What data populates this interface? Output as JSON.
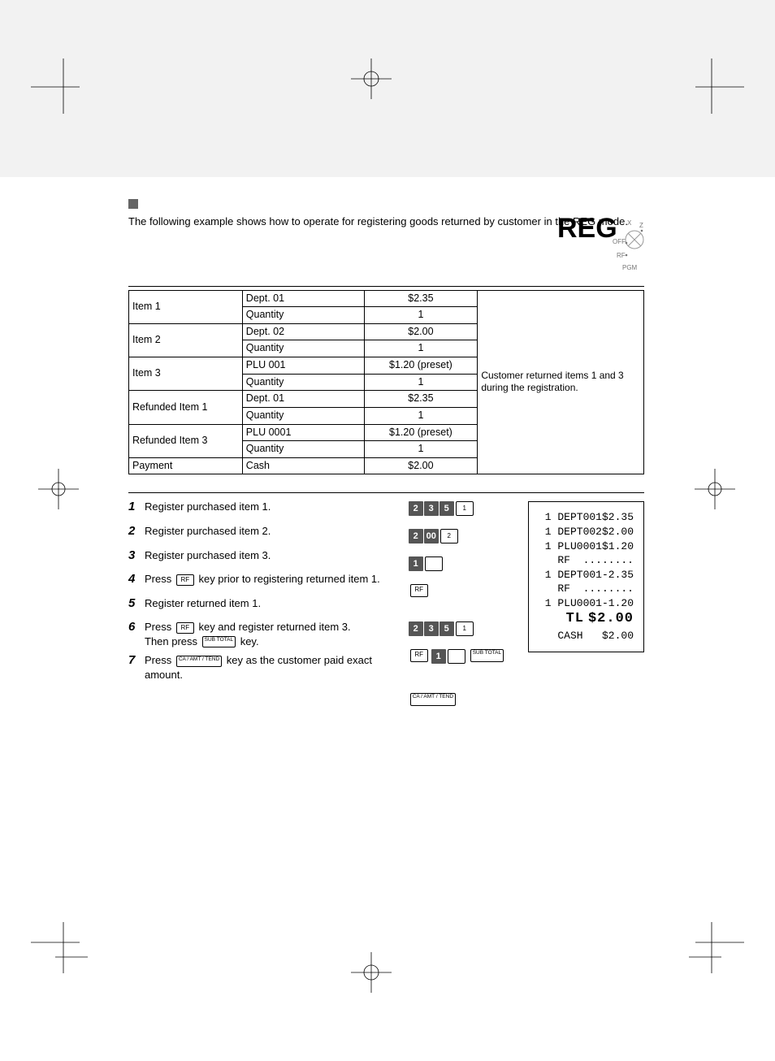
{
  "intro": "The following example shows how to operate for registering goods returned by customer in the REG mode.",
  "mode_label": "REG",
  "dial_labels": {
    "x": "X",
    "z": "Z",
    "off": "OFF",
    "rf": "RF",
    "pgm": "PGM"
  },
  "table_note": "Customer returned items 1 and 3 during the registration.",
  "table_rows": [
    {
      "label": "Item 1",
      "a": "Dept. 01",
      "b": "$2.35",
      "c": "Quantity",
      "d": "1"
    },
    {
      "label": "Item 2",
      "a": "Dept. 02",
      "b": "$2.00",
      "c": "Quantity",
      "d": "1"
    },
    {
      "label": "Item 3",
      "a": "PLU 001",
      "b": "$1.20 (preset)",
      "c": "Quantity",
      "d": "1"
    },
    {
      "label": "Refunded Item 1",
      "a": "Dept. 01",
      "b": "$2.35",
      "c": "Quantity",
      "d": "1"
    },
    {
      "label": "Refunded Item 3",
      "a": "PLU 0001",
      "b": "$1.20 (preset)",
      "c": "Quantity",
      "d": "1"
    }
  ],
  "payment_row": {
    "label": "Payment",
    "a": "Cash",
    "b": "$2.00"
  },
  "steps": {
    "s1": {
      "num": "1",
      "text_pre": "Register purchased item 1."
    },
    "s2": {
      "num": "2",
      "text_pre": "Register purchased item 2."
    },
    "s3": {
      "num": "3",
      "text_pre": "Register purchased item 3."
    },
    "s4": {
      "num": "4",
      "text_pre": "Press ",
      "key": "RF",
      "text_post": " key prior to registering returned item 1."
    },
    "s5": {
      "num": "5",
      "text_pre": "Register returned item 1."
    },
    "s6": {
      "num": "6",
      "text_pre": "Press ",
      "key": "RF",
      "text_mid": " key and register returned item 3.",
      "line2_pre": "Then press ",
      "key2": "SUB\nTOTAL",
      "line2_post": " key."
    },
    "s7": {
      "num": "7",
      "text_pre": "Press ",
      "key": "CA / AMT\n/ TEND",
      "text_post": " key as the customer paid exact amount."
    }
  },
  "key_sequences": {
    "r1": [
      "2",
      "3",
      "5"
    ],
    "r1_dept": "1",
    "r2": [
      "2",
      "00"
    ],
    "r2_dept": "2",
    "r3": [
      "1"
    ],
    "r4_key": "RF",
    "r5": [
      "2",
      "3",
      "5"
    ],
    "r5_dept": "1",
    "r6_key": "RF",
    "r6_digit": "1",
    "r6_sub": "SUB\nTOTAL",
    "r7_key": "CA / AMT\n/ TEND"
  },
  "receipt": {
    "lines": [
      {
        "l": " 1 DEPT001",
        "r": "$2.35"
      },
      {
        "l": " 1 DEPT002",
        "r": "$2.00"
      },
      {
        "l": " 1 PLU0001",
        "r": "$1.20"
      },
      {
        "l": "   RF",
        "r": "........"
      },
      {
        "l": " 1 DEPT001",
        "r": "-2.35"
      },
      {
        "l": "   RF",
        "r": "........"
      },
      {
        "l": " 1 PLU0001",
        "r": "-1.20"
      },
      {
        "l": "   TL",
        "r": "$2.00",
        "big": true
      },
      {
        "l": "   CASH",
        "r": "$2.00"
      }
    ]
  }
}
